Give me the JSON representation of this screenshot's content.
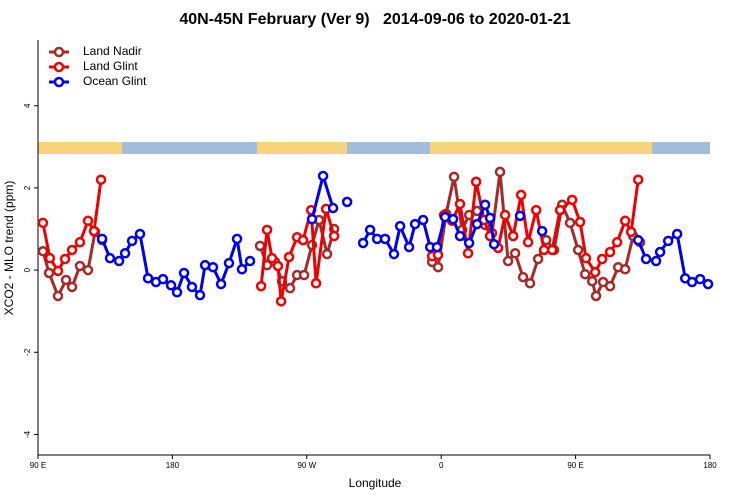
{
  "chart_data": {
    "type": "line",
    "title": "40N-45N February (Ver 9)   2014-09-06 to 2020-01-21",
    "xlabel": "Longitude",
    "ylabel": "XCO2 - MLO trend (ppm)",
    "xlim": [
      90,
      540
    ],
    "ylim": [
      -4.5,
      5.6
    ],
    "xticks": [
      {
        "value": 90,
        "label": "90 E"
      },
      180,
      {
        "value": 270,
        "label": "90 W"
      },
      {
        "value": 360,
        "label": "0"
      },
      {
        "value": 450,
        "label": "90 E"
      },
      {
        "value": 540,
        "label": "180"
      }
    ],
    "yticks": [
      -4,
      -2,
      0,
      2,
      4
    ],
    "legend": "top-left",
    "series": [
      {
        "name": "Land Nadir",
        "color": "#a52a2a",
        "x": [
          93.3,
          97.4,
          103.4,
          108.8,
          112.8,
          118.1,
          123.5,
          128.2,
          132.9,
          null,
          238.7,
          243.4,
          248.7,
          253.4,
          258.8,
          263.5,
          268.2,
          273.5,
          278.2,
          283.6,
          288.3,
          null,
          353.9,
          357.9,
          363.3,
          368.6,
          374.0,
          378.7,
          384.0,
          389.4,
          394.1,
          399.4,
          404.8,
          409.5,
          414.8,
          419.5,
          424.9,
          430.3,
          435.6,
          441.0,
          446.3,
          451.7,
          456.4,
          461.1,
          463.7,
          468.4,
          473.1,
          478.5,
          483.2,
          488.5,
          493.2
        ],
        "values": [
          0.46,
          -0.07,
          -0.63,
          -0.24,
          -0.41,
          0.1,
          0.0,
          0.93,
          0.73,
          null,
          0.59,
          0.12,
          0.2,
          -0.27,
          -0.44,
          -0.12,
          -0.12,
          0.61,
          1.22,
          0.39,
          1.0,
          null,
          0.2,
          0.07,
          1.37,
          2.27,
          0.98,
          1.34,
          1.44,
          1.1,
          0.9,
          2.39,
          0.22,
          0.41,
          -0.17,
          -0.32,
          0.27,
          0.73,
          0.49,
          1.59,
          1.15,
          0.49,
          -0.1,
          -0.27,
          -0.63,
          -0.29,
          -0.39,
          0.07,
          0.02,
          0.83,
          0.68
        ]
      },
      {
        "name": "Land Glint",
        "color": "#ee0000",
        "x": [
          93.3,
          98.0,
          103.4,
          108.1,
          112.8,
          118.1,
          123.5,
          127.5,
          132.2,
          null,
          239.4,
          243.4,
          246.7,
          250.7,
          252.8,
          258.1,
          263.5,
          267.5,
          272.9,
          276.2,
          282.9,
          288.3,
          null,
          353.9,
          357.9,
          361.9,
          367.3,
          372.6,
          378.0,
          383.4,
          388.7,
          392.7,
          398.1,
          402.8,
          408.2,
          413.5,
          418.2,
          423.6,
          428.9,
          434.3,
          439.6,
          447.7,
          453.0,
          457.0,
          463.1,
          467.8,
          473.1,
          477.8,
          483.2,
          487.2,
          491.9
        ],
        "values": [
          1.15,
          0.29,
          -0.02,
          0.27,
          0.49,
          0.68,
          1.2,
          0.95,
          2.2,
          null,
          -0.39,
          0.98,
          0.29,
          0.1,
          -0.76,
          0.32,
          0.8,
          0.73,
          1.46,
          -0.32,
          1.49,
          0.83,
          null,
          0.34,
          0.37,
          1.34,
          1.2,
          1.61,
          0.41,
          2.15,
          1.22,
          0.83,
          0.54,
          1.34,
          0.83,
          1.83,
          0.68,
          1.46,
          0.49,
          0.49,
          1.46,
          1.71,
          1.17,
          0.29,
          -0.05,
          0.27,
          0.44,
          0.68,
          1.2,
          0.93,
          2.2
        ]
      },
      {
        "name": "Ocean Glint",
        "color": "#0000ee",
        "x": [
          132.9,
          138.2,
          144.3,
          148.3,
          153.0,
          158.3,
          163.7,
          169.0,
          173.7,
          179.1,
          183.1,
          187.8,
          193.1,
          198.5,
          201.9,
          207.2,
          212.6,
          217.9,
          223.3,
          226.6,
          232.0,
          null,
          273.5,
          280.9,
          287.6,
          null,
          297.0,
          null,
          307.7,
          312.4,
          317.1,
          322.4,
          328.4,
          332.5,
          338.5,
          342.5,
          347.9,
          352.6,
          357.2,
          362.6,
          368.0,
          372.6,
          378.7,
          384.0,
          389.4,
          392.7,
          395.4,
          null,
          412.8,
          null,
          427.6,
          null,
          491.9,
          497.2,
          503.9,
          506.6,
          512.0,
          518.0,
          523.4,
          528.0,
          533.4,
          538.7
        ],
        "values": [
          0.76,
          0.29,
          0.22,
          0.41,
          0.71,
          0.88,
          -0.2,
          -0.29,
          -0.22,
          -0.37,
          -0.54,
          -0.07,
          -0.41,
          -0.61,
          0.12,
          0.07,
          -0.34,
          0.17,
          0.76,
          0.02,
          0.22,
          null,
          1.24,
          2.29,
          1.51,
          null,
          1.66,
          null,
          0.66,
          0.98,
          0.76,
          0.76,
          0.39,
          1.07,
          0.56,
          1.12,
          1.22,
          0.56,
          0.56,
          1.29,
          1.24,
          0.83,
          0.66,
          1.12,
          1.59,
          1.27,
          0.63,
          null,
          1.32,
          null,
          0.95,
          null,
          0.73,
          0.27,
          0.22,
          0.44,
          0.71,
          0.88,
          -0.2,
          -0.29,
          -0.22,
          -0.34
        ]
      }
    ]
  }
}
